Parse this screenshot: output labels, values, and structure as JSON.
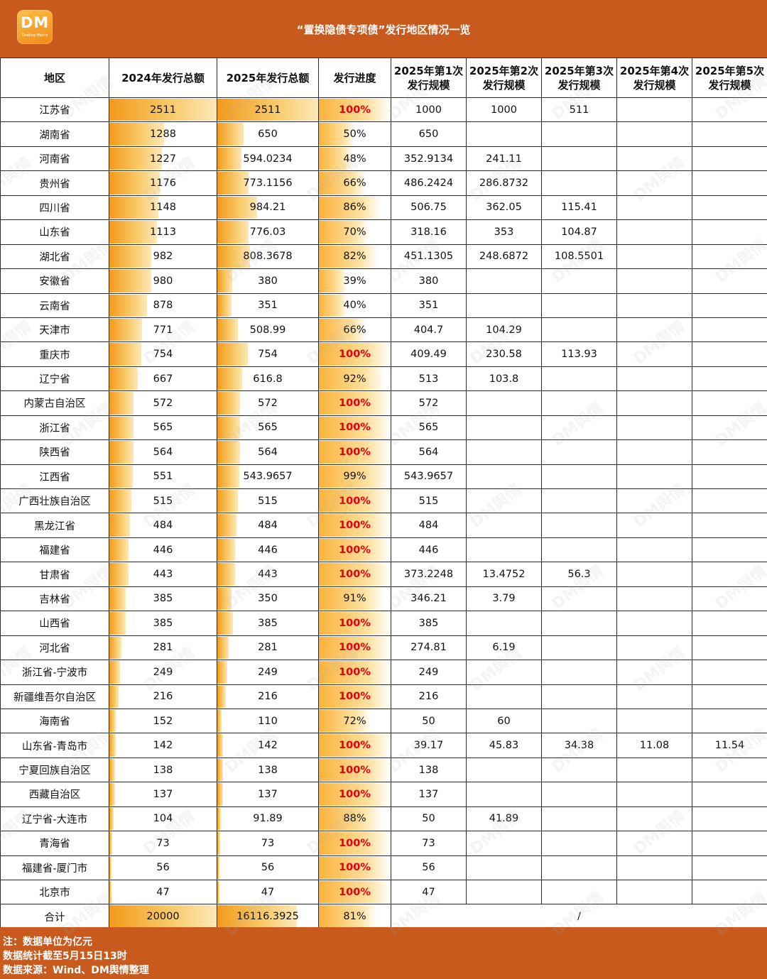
{
  "header": {
    "logo_text": "DM",
    "logo_subtext": "Dealing Matrix",
    "title": "“置换隐债专项债”发行地区情况一览"
  },
  "columns": [
    "地区",
    "2024年发行总额",
    "2025年发行总额",
    "发行进度",
    "2025年第1次发行规模",
    "2025年第2次发行规模",
    "2025年第3次发行规模",
    "2025年第4次发行规模",
    "2025年第5次发行规模"
  ],
  "rows": [
    {
      "region": "江苏省",
      "total_2024": "2511",
      "total_2025": "2511",
      "progress": "100%",
      "progress_value": 100,
      "r1": "1000",
      "r2": "1000",
      "r3": "511",
      "r4": "",
      "r5": ""
    },
    {
      "region": "湖南省",
      "total_2024": "1288",
      "total_2025": "650",
      "progress": "50%",
      "progress_value": 50,
      "r1": "650",
      "r2": "",
      "r3": "",
      "r4": "",
      "r5": ""
    },
    {
      "region": "河南省",
      "total_2024": "1227",
      "total_2025": "594.0234",
      "progress": "48%",
      "progress_value": 48,
      "r1": "352.9134",
      "r2": "241.11",
      "r3": "",
      "r4": "",
      "r5": ""
    },
    {
      "region": "贵州省",
      "total_2024": "1176",
      "total_2025": "773.1156",
      "progress": "66%",
      "progress_value": 66,
      "r1": "486.2424",
      "r2": "286.8732",
      "r3": "",
      "r4": "",
      "r5": ""
    },
    {
      "region": "四川省",
      "total_2024": "1148",
      "total_2025": "984.21",
      "progress": "86%",
      "progress_value": 86,
      "r1": "506.75",
      "r2": "362.05",
      "r3": "115.41",
      "r4": "",
      "r5": ""
    },
    {
      "region": "山东省",
      "total_2024": "1113",
      "total_2025": "776.03",
      "progress": "70%",
      "progress_value": 70,
      "r1": "318.16",
      "r2": "353",
      "r3": "104.87",
      "r4": "",
      "r5": ""
    },
    {
      "region": "湖北省",
      "total_2024": "982",
      "total_2025": "808.3678",
      "progress": "82%",
      "progress_value": 82,
      "r1": "451.1305",
      "r2": "248.6872",
      "r3": "108.5501",
      "r4": "",
      "r5": ""
    },
    {
      "region": "安徽省",
      "total_2024": "980",
      "total_2025": "380",
      "progress": "39%",
      "progress_value": 39,
      "r1": "380",
      "r2": "",
      "r3": "",
      "r4": "",
      "r5": ""
    },
    {
      "region": "云南省",
      "total_2024": "878",
      "total_2025": "351",
      "progress": "40%",
      "progress_value": 40,
      "r1": "351",
      "r2": "",
      "r3": "",
      "r4": "",
      "r5": ""
    },
    {
      "region": "天津市",
      "total_2024": "771",
      "total_2025": "508.99",
      "progress": "66%",
      "progress_value": 66,
      "r1": "404.7",
      "r2": "104.29",
      "r3": "",
      "r4": "",
      "r5": ""
    },
    {
      "region": "重庆市",
      "total_2024": "754",
      "total_2025": "754",
      "progress": "100%",
      "progress_value": 100,
      "r1": "409.49",
      "r2": "230.58",
      "r3": "113.93",
      "r4": "",
      "r5": ""
    },
    {
      "region": "辽宁省",
      "total_2024": "667",
      "total_2025": "616.8",
      "progress": "92%",
      "progress_value": 92,
      "r1": "513",
      "r2": "103.8",
      "r3": "",
      "r4": "",
      "r5": ""
    },
    {
      "region": "内蒙古自治区",
      "total_2024": "572",
      "total_2025": "572",
      "progress": "100%",
      "progress_value": 100,
      "r1": "572",
      "r2": "",
      "r3": "",
      "r4": "",
      "r5": ""
    },
    {
      "region": "浙江省",
      "total_2024": "565",
      "total_2025": "565",
      "progress": "100%",
      "progress_value": 100,
      "r1": "565",
      "r2": "",
      "r3": "",
      "r4": "",
      "r5": ""
    },
    {
      "region": "陕西省",
      "total_2024": "564",
      "total_2025": "564",
      "progress": "100%",
      "progress_value": 100,
      "r1": "564",
      "r2": "",
      "r3": "",
      "r4": "",
      "r5": ""
    },
    {
      "region": "江西省",
      "total_2024": "551",
      "total_2025": "543.9657",
      "progress": "99%",
      "progress_value": 99,
      "r1": "543.9657",
      "r2": "",
      "r3": "",
      "r4": "",
      "r5": ""
    },
    {
      "region": "广西壮族自治区",
      "total_2024": "515",
      "total_2025": "515",
      "progress": "100%",
      "progress_value": 100,
      "r1": "515",
      "r2": "",
      "r3": "",
      "r4": "",
      "r5": ""
    },
    {
      "region": "黑龙江省",
      "total_2024": "484",
      "total_2025": "484",
      "progress": "100%",
      "progress_value": 100,
      "r1": "484",
      "r2": "",
      "r3": "",
      "r4": "",
      "r5": ""
    },
    {
      "region": "福建省",
      "total_2024": "446",
      "total_2025": "446",
      "progress": "100%",
      "progress_value": 100,
      "r1": "446",
      "r2": "",
      "r3": "",
      "r4": "",
      "r5": ""
    },
    {
      "region": "甘肃省",
      "total_2024": "443",
      "total_2025": "443",
      "progress": "100%",
      "progress_value": 100,
      "r1": "373.2248",
      "r2": "13.4752",
      "r3": "56.3",
      "r4": "",
      "r5": ""
    },
    {
      "region": "吉林省",
      "total_2024": "385",
      "total_2025": "350",
      "progress": "91%",
      "progress_value": 91,
      "r1": "346.21",
      "r2": "3.79",
      "r3": "",
      "r4": "",
      "r5": ""
    },
    {
      "region": "山西省",
      "total_2024": "385",
      "total_2025": "385",
      "progress": "100%",
      "progress_value": 100,
      "r1": "385",
      "r2": "",
      "r3": "",
      "r4": "",
      "r5": ""
    },
    {
      "region": "河北省",
      "total_2024": "281",
      "total_2025": "281",
      "progress": "100%",
      "progress_value": 100,
      "r1": "274.81",
      "r2": "6.19",
      "r3": "",
      "r4": "",
      "r5": ""
    },
    {
      "region": "浙江省-宁波市",
      "total_2024": "249",
      "total_2025": "249",
      "progress": "100%",
      "progress_value": 100,
      "r1": "249",
      "r2": "",
      "r3": "",
      "r4": "",
      "r5": ""
    },
    {
      "region": "新疆维吾尔自治区",
      "total_2024": "216",
      "total_2025": "216",
      "progress": "100%",
      "progress_value": 100,
      "r1": "216",
      "r2": "",
      "r3": "",
      "r4": "",
      "r5": ""
    },
    {
      "region": "海南省",
      "total_2024": "152",
      "total_2025": "110",
      "progress": "72%",
      "progress_value": 72,
      "r1": "50",
      "r2": "60",
      "r3": "",
      "r4": "",
      "r5": ""
    },
    {
      "region": "山东省-青岛市",
      "total_2024": "142",
      "total_2025": "142",
      "progress": "100%",
      "progress_value": 100,
      "r1": "39.17",
      "r2": "45.83",
      "r3": "34.38",
      "r4": "11.08",
      "r5": "11.54"
    },
    {
      "region": "宁夏回族自治区",
      "total_2024": "138",
      "total_2025": "138",
      "progress": "100%",
      "progress_value": 100,
      "r1": "138",
      "r2": "",
      "r3": "",
      "r4": "",
      "r5": ""
    },
    {
      "region": "西藏自治区",
      "total_2024": "137",
      "total_2025": "137",
      "progress": "100%",
      "progress_value": 100,
      "r1": "137",
      "r2": "",
      "r3": "",
      "r4": "",
      "r5": ""
    },
    {
      "region": "辽宁省-大连市",
      "total_2024": "104",
      "total_2025": "91.89",
      "progress": "88%",
      "progress_value": 88,
      "r1": "50",
      "r2": "41.89",
      "r3": "",
      "r4": "",
      "r5": ""
    },
    {
      "region": "青海省",
      "total_2024": "73",
      "total_2025": "73",
      "progress": "100%",
      "progress_value": 100,
      "r1": "73",
      "r2": "",
      "r3": "",
      "r4": "",
      "r5": ""
    },
    {
      "region": "福建省-厦门市",
      "total_2024": "56",
      "total_2025": "56",
      "progress": "100%",
      "progress_value": 100,
      "r1": "56",
      "r2": "",
      "r3": "",
      "r4": "",
      "r5": ""
    },
    {
      "region": "北京市",
      "total_2024": "47",
      "total_2025": "47",
      "progress": "100%",
      "progress_value": 100,
      "r1": "47",
      "r2": "",
      "r3": "",
      "r4": "",
      "r5": ""
    }
  ],
  "total": {
    "region": "合计",
    "total_2024": "20000",
    "total_2025": "16116.3925",
    "progress": "81%",
    "progress_value": 81,
    "merged": "/"
  },
  "footer": {
    "note1": "注：数据单位为亿元",
    "note2": "数据统计截至5月15日13时",
    "note3": "数据来源：Wind、DM舆情整理"
  },
  "watermark": "DM舆情",
  "colors": {
    "header_bg": "#c85a1e",
    "bar_orange": "#f39a1c",
    "full_text": "#e0000e"
  }
}
